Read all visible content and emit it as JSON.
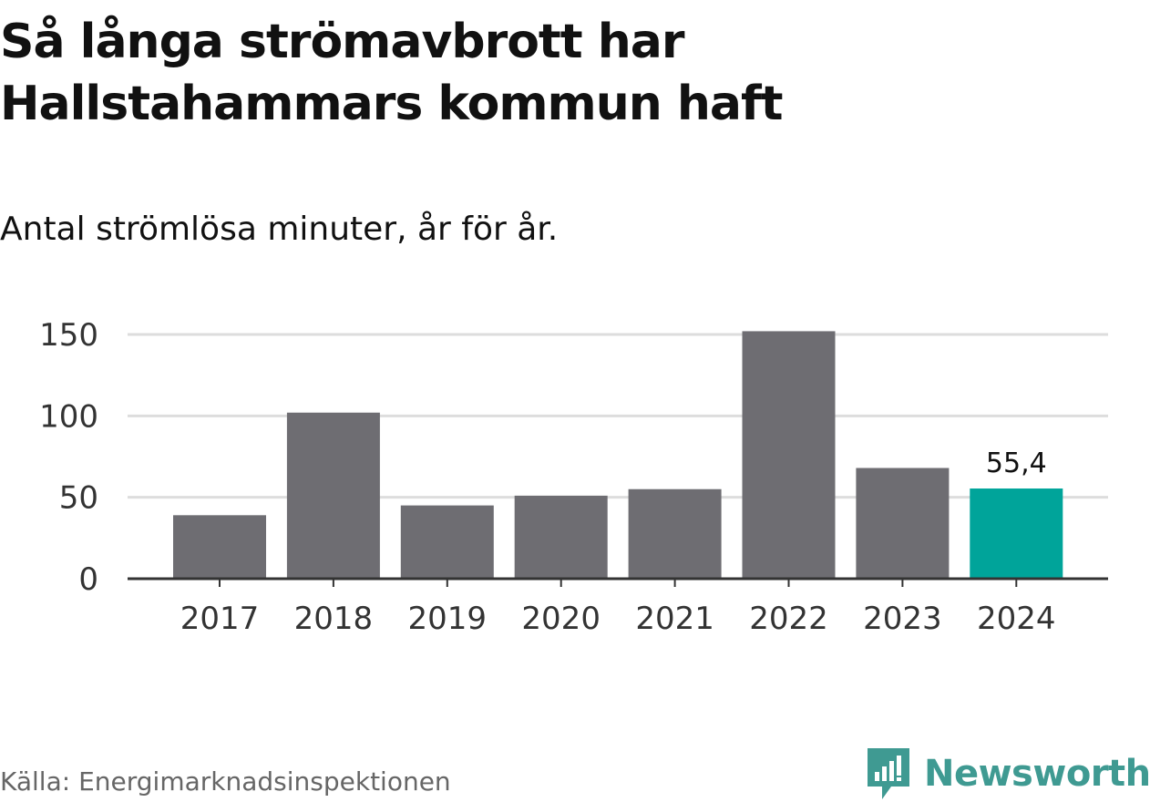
{
  "title": "Så långa strömavbrott har Hallstahammars kommun haft",
  "subtitle": "Antal strömlösa minuter, år för år.",
  "source": "Källa: Energimarknadsinspektionen",
  "brand": {
    "name": "Newsworthy",
    "icon": "newsworthy-logo-icon",
    "color": "#3f9a92"
  },
  "colors": {
    "bar": "#6e6d72",
    "highlight": "#00a49a",
    "grid": "#dddddd",
    "axis": "#333333"
  },
  "chart_data": {
    "type": "bar",
    "categories": [
      "2017",
      "2018",
      "2019",
      "2020",
      "2021",
      "2022",
      "2023",
      "2024"
    ],
    "values": [
      39,
      102,
      45,
      51,
      55,
      152,
      68,
      55.4
    ],
    "highlight_index": 7,
    "data_labels": [
      {
        "index": 7,
        "text": "55,4"
      }
    ],
    "ylim": [
      0,
      150
    ],
    "yticks": [
      0,
      50,
      100,
      150
    ],
    "ytick_labels": [
      "0",
      "50",
      "100",
      "150"
    ],
    "xlabel": "",
    "ylabel": "",
    "grid": true,
    "legend": "none"
  }
}
